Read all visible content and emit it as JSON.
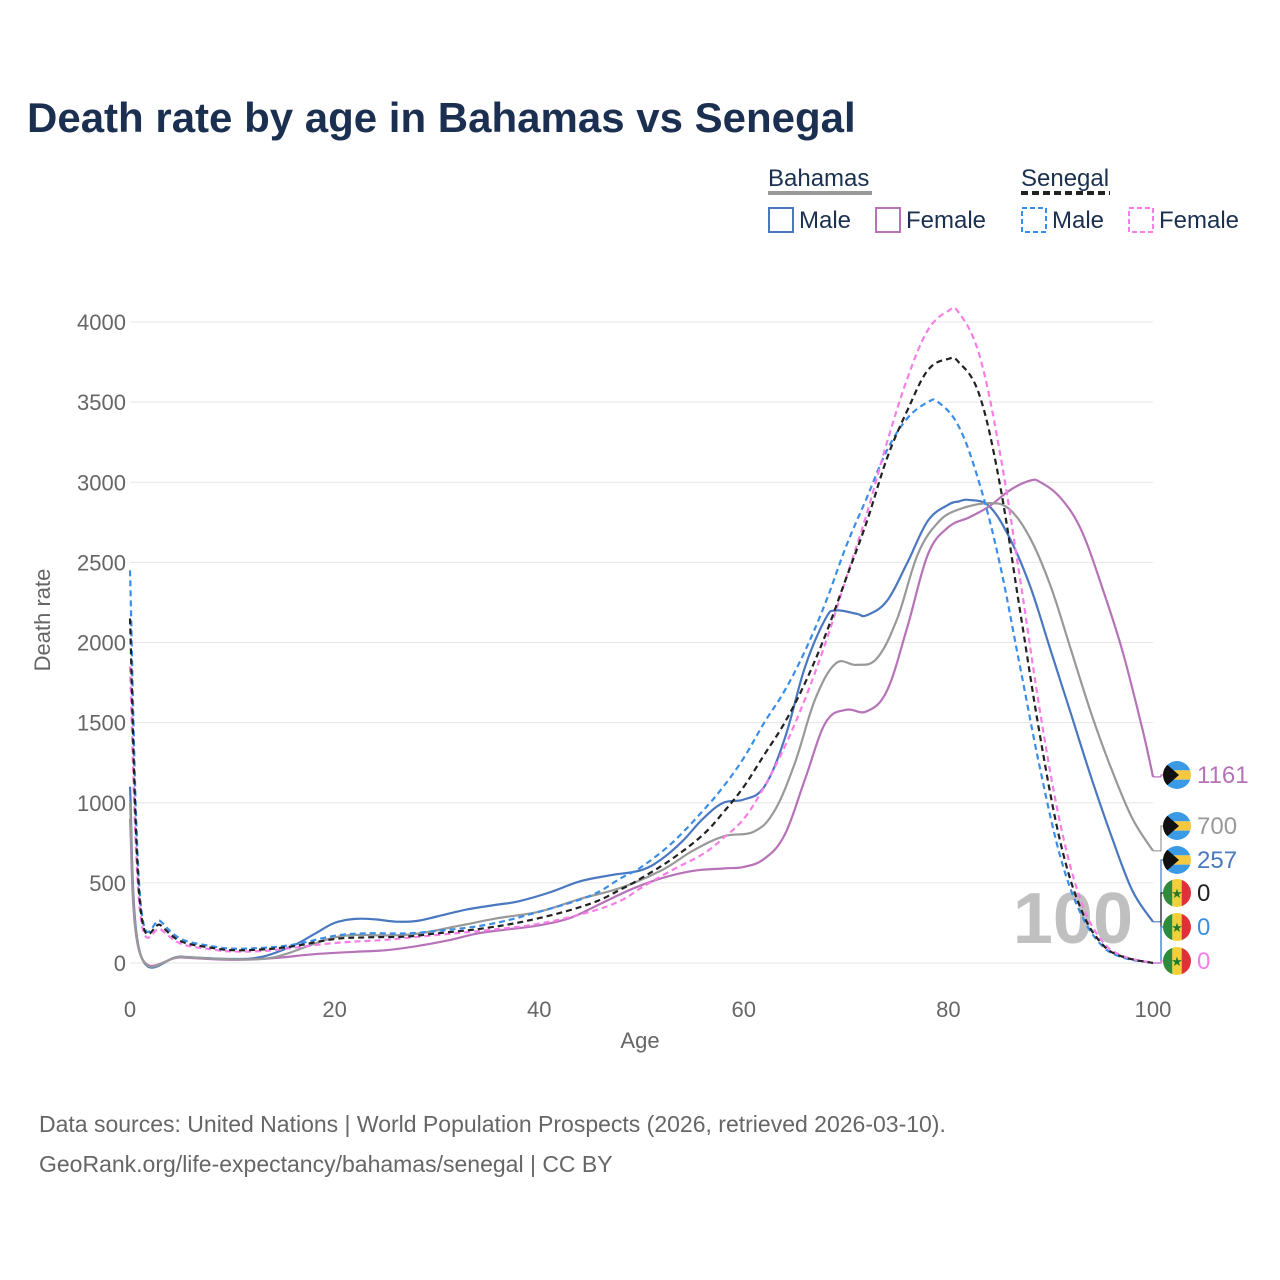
{
  "colors": {
    "bahamas_male": "#4a78c0",
    "bahamas_female": "#b673b8",
    "bahamas_total": "#999999",
    "senegal_male": "#3b8ee8",
    "senegal_female": "#f77ee7",
    "senegal_total": "#222222",
    "title": "#1b3050",
    "grid": "#e6e6e6",
    "tick": "#666666"
  },
  "chart_data": {
    "type": "line",
    "title": "Death rate by age in Bahamas vs Senegal",
    "xlabel": "Age",
    "ylabel": "Death rate",
    "xlim": [
      0,
      100
    ],
    "ylim": [
      0,
      4000
    ],
    "x_ticks": [
      "0",
      "20",
      "40",
      "60",
      "80",
      "100"
    ],
    "y_ticks": [
      "0",
      "500",
      "1000",
      "1500",
      "2000",
      "2500",
      "3000",
      "3500",
      "4000"
    ],
    "grid": true,
    "watermark": "100",
    "legend": {
      "groups": [
        {
          "name": "Bahamas",
          "items": [
            "Male",
            "Female"
          ],
          "style": "solid"
        },
        {
          "name": "Senegal",
          "items": [
            "Male",
            "Female"
          ],
          "style": "dashed"
        }
      ]
    },
    "series": [
      {
        "name": "Bahamas Male",
        "country": "Bahamas",
        "sex": "Male",
        "dashed": false,
        "color_key": "bahamas_male",
        "end_label": "257",
        "points": [
          [
            0,
            1100
          ],
          [
            1,
            60
          ],
          [
            5,
            40
          ],
          [
            10,
            25
          ],
          [
            13,
            40
          ],
          [
            16,
            110
          ],
          [
            18,
            180
          ],
          [
            20,
            250
          ],
          [
            22,
            275
          ],
          [
            24,
            272
          ],
          [
            26,
            258
          ],
          [
            28,
            262
          ],
          [
            30,
            290
          ],
          [
            33,
            335
          ],
          [
            36,
            365
          ],
          [
            38,
            385
          ],
          [
            41,
            440
          ],
          [
            44,
            510
          ],
          [
            47,
            548
          ],
          [
            50,
            580
          ],
          [
            52,
            650
          ],
          [
            54,
            760
          ],
          [
            56,
            900
          ],
          [
            58,
            1000
          ],
          [
            60,
            1020
          ],
          [
            62,
            1100
          ],
          [
            64,
            1400
          ],
          [
            66,
            1850
          ],
          [
            68,
            2150
          ],
          [
            69,
            2200
          ],
          [
            71,
            2180
          ],
          [
            72,
            2170
          ],
          [
            74,
            2260
          ],
          [
            76,
            2500
          ],
          [
            78,
            2760
          ],
          [
            80,
            2860
          ],
          [
            81,
            2880
          ],
          [
            82,
            2890
          ],
          [
            84,
            2850
          ],
          [
            86,
            2650
          ],
          [
            88,
            2350
          ],
          [
            90,
            1950
          ],
          [
            92,
            1550
          ],
          [
            94,
            1150
          ],
          [
            96,
            780
          ],
          [
            98,
            450
          ],
          [
            100,
            257
          ]
        ]
      },
      {
        "name": "Bahamas Female",
        "country": "Bahamas",
        "sex": "Female",
        "dashed": false,
        "color_key": "bahamas_female",
        "end_label": "1161",
        "points": [
          [
            0,
            900
          ],
          [
            1,
            55
          ],
          [
            5,
            35
          ],
          [
            10,
            20
          ],
          [
            14,
            30
          ],
          [
            18,
            55
          ],
          [
            22,
            70
          ],
          [
            25,
            80
          ],
          [
            28,
            105
          ],
          [
            31,
            140
          ],
          [
            34,
            185
          ],
          [
            37,
            210
          ],
          [
            40,
            235
          ],
          [
            43,
            280
          ],
          [
            46,
            370
          ],
          [
            49,
            460
          ],
          [
            52,
            530
          ],
          [
            55,
            575
          ],
          [
            58,
            590
          ],
          [
            60,
            600
          ],
          [
            62,
            650
          ],
          [
            64,
            800
          ],
          [
            66,
            1150
          ],
          [
            68,
            1500
          ],
          [
            70,
            1580
          ],
          [
            72,
            1570
          ],
          [
            74,
            1700
          ],
          [
            76,
            2100
          ],
          [
            78,
            2550
          ],
          [
            80,
            2720
          ],
          [
            82,
            2780
          ],
          [
            84,
            2850
          ],
          [
            86,
            2950
          ],
          [
            88,
            3010
          ],
          [
            89,
            3000
          ],
          [
            91,
            2900
          ],
          [
            93,
            2700
          ],
          [
            95,
            2350
          ],
          [
            97,
            1950
          ],
          [
            99,
            1450
          ],
          [
            100,
            1161
          ]
        ]
      },
      {
        "name": "Bahamas Total",
        "country": "Bahamas",
        "sex": "Total",
        "dashed": false,
        "color_key": "bahamas_total",
        "end_label": "700",
        "points": [
          [
            0,
            1000
          ],
          [
            1,
            58
          ],
          [
            5,
            38
          ],
          [
            10,
            23
          ],
          [
            14,
            35
          ],
          [
            18,
            120
          ],
          [
            20,
            160
          ],
          [
            22,
            175
          ],
          [
            25,
            172
          ],
          [
            28,
            182
          ],
          [
            32,
            230
          ],
          [
            36,
            280
          ],
          [
            40,
            320
          ],
          [
            44,
            400
          ],
          [
            48,
            470
          ],
          [
            52,
            580
          ],
          [
            55,
            700
          ],
          [
            58,
            790
          ],
          [
            61,
            820
          ],
          [
            63,
            950
          ],
          [
            65,
            1250
          ],
          [
            67,
            1650
          ],
          [
            69,
            1870
          ],
          [
            71,
            1860
          ],
          [
            73,
            1900
          ],
          [
            75,
            2150
          ],
          [
            77,
            2550
          ],
          [
            79,
            2750
          ],
          [
            81,
            2830
          ],
          [
            84,
            2870
          ],
          [
            86,
            2830
          ],
          [
            88,
            2650
          ],
          [
            90,
            2350
          ],
          [
            92,
            1950
          ],
          [
            94,
            1550
          ],
          [
            96,
            1200
          ],
          [
            98,
            900
          ],
          [
            100,
            700
          ]
        ]
      },
      {
        "name": "Senegal Male",
        "country": "Senegal",
        "sex": "Male",
        "dashed": true,
        "color_key": "senegal_male",
        "end_label": "0",
        "points": [
          [
            0,
            2450
          ],
          [
            1,
            400
          ],
          [
            3,
            260
          ],
          [
            5,
            150
          ],
          [
            8,
            105
          ],
          [
            10,
            90
          ],
          [
            13,
            95
          ],
          [
            16,
            115
          ],
          [
            20,
            170
          ],
          [
            23,
            185
          ],
          [
            27,
            185
          ],
          [
            30,
            200
          ],
          [
            35,
            240
          ],
          [
            40,
            320
          ],
          [
            45,
            420
          ],
          [
            48,
            530
          ],
          [
            50,
            600
          ],
          [
            53,
            750
          ],
          [
            56,
            950
          ],
          [
            58,
            1100
          ],
          [
            60,
            1280
          ],
          [
            62,
            1500
          ],
          [
            64,
            1700
          ],
          [
            66,
            1950
          ],
          [
            68,
            2250
          ],
          [
            70,
            2600
          ],
          [
            72,
            2900
          ],
          [
            74,
            3200
          ],
          [
            76,
            3400
          ],
          [
            78,
            3500
          ],
          [
            79,
            3500
          ],
          [
            81,
            3350
          ],
          [
            83,
            3000
          ],
          [
            85,
            2500
          ],
          [
            87,
            1850
          ],
          [
            89,
            1200
          ],
          [
            91,
            650
          ],
          [
            93,
            300
          ],
          [
            95,
            110
          ],
          [
            97,
            35
          ],
          [
            100,
            0
          ]
        ]
      },
      {
        "name": "Senegal Female",
        "country": "Senegal",
        "sex": "Female",
        "dashed": true,
        "color_key": "senegal_female",
        "end_label": "0",
        "points": [
          [
            0,
            1850
          ],
          [
            1,
            310
          ],
          [
            3,
            210
          ],
          [
            5,
            120
          ],
          [
            8,
            85
          ],
          [
            10,
            72
          ],
          [
            13,
            75
          ],
          [
            16,
            95
          ],
          [
            20,
            125
          ],
          [
            25,
            145
          ],
          [
            30,
            175
          ],
          [
            35,
            205
          ],
          [
            40,
            245
          ],
          [
            45,
            320
          ],
          [
            48,
            390
          ],
          [
            50,
            470
          ],
          [
            53,
            580
          ],
          [
            56,
            680
          ],
          [
            58,
            780
          ],
          [
            60,
            900
          ],
          [
            62,
            1100
          ],
          [
            64,
            1350
          ],
          [
            66,
            1650
          ],
          [
            68,
            2000
          ],
          [
            70,
            2400
          ],
          [
            72,
            2800
          ],
          [
            74,
            3250
          ],
          [
            76,
            3650
          ],
          [
            78,
            3950
          ],
          [
            80,
            4070
          ],
          [
            81,
            4060
          ],
          [
            83,
            3800
          ],
          [
            85,
            3200
          ],
          [
            87,
            2400
          ],
          [
            89,
            1550
          ],
          [
            91,
            850
          ],
          [
            93,
            380
          ],
          [
            95,
            140
          ],
          [
            97,
            45
          ],
          [
            100,
            0
          ]
        ]
      },
      {
        "name": "Senegal Total",
        "country": "Senegal",
        "sex": "Total",
        "dashed": true,
        "color_key": "senegal_total",
        "end_label": "0",
        "points": [
          [
            0,
            2150
          ],
          [
            1,
            360
          ],
          [
            3,
            235
          ],
          [
            5,
            135
          ],
          [
            8,
            95
          ],
          [
            10,
            80
          ],
          [
            13,
            85
          ],
          [
            16,
            105
          ],
          [
            20,
            150
          ],
          [
            23,
            160
          ],
          [
            27,
            165
          ],
          [
            30,
            185
          ],
          [
            35,
            220
          ],
          [
            40,
            280
          ],
          [
            45,
            370
          ],
          [
            48,
            460
          ],
          [
            50,
            530
          ],
          [
            53,
            650
          ],
          [
            56,
            800
          ],
          [
            58,
            940
          ],
          [
            60,
            1100
          ],
          [
            62,
            1300
          ],
          [
            64,
            1500
          ],
          [
            66,
            1750
          ],
          [
            68,
            2050
          ],
          [
            70,
            2400
          ],
          [
            72,
            2750
          ],
          [
            74,
            3150
          ],
          [
            76,
            3450
          ],
          [
            78,
            3700
          ],
          [
            80,
            3770
          ],
          [
            81,
            3750
          ],
          [
            83,
            3550
          ],
          [
            85,
            3000
          ],
          [
            87,
            2200
          ],
          [
            89,
            1400
          ],
          [
            91,
            740
          ],
          [
            93,
            330
          ],
          [
            95,
            120
          ],
          [
            97,
            40
          ],
          [
            100,
            0
          ]
        ]
      }
    ]
  },
  "source": {
    "line1": "Data sources: United Nations | World Population Prospects (2026, retrieved 2026-03-10).",
    "line2": "GeoRank.org/life-expectancy/bahamas/senegal | CC BY"
  }
}
